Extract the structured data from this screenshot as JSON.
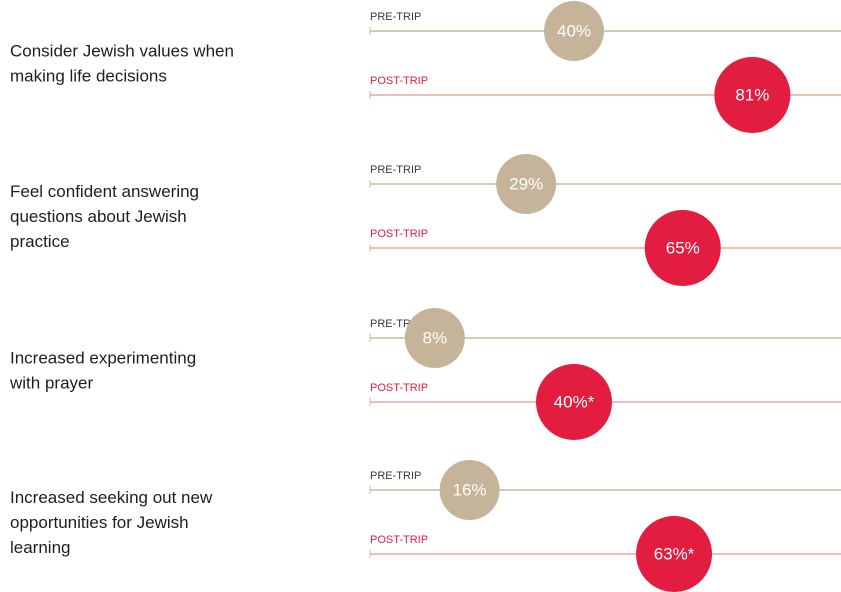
{
  "chart_data": {
    "type": "dot",
    "categories": [
      "Consider Jewish values when making life decisions",
      "Feel confident answering questions about Jewish practice",
      "Increased experimenting with prayer",
      "Increased seeking out new opportunities for Jewish learning"
    ],
    "series": [
      {
        "name": "PRE-TRIP",
        "color": "#c5b49a",
        "values": [
          40,
          29,
          8,
          16
        ],
        "value_labels": [
          "40%",
          "29%",
          "8%",
          "16%"
        ]
      },
      {
        "name": "POST-TRIP",
        "color": "#e21d40",
        "values": [
          81,
          65,
          40,
          63
        ],
        "value_labels": [
          "81%",
          "65%",
          "40%*",
          "63%*"
        ]
      }
    ]
  }
}
